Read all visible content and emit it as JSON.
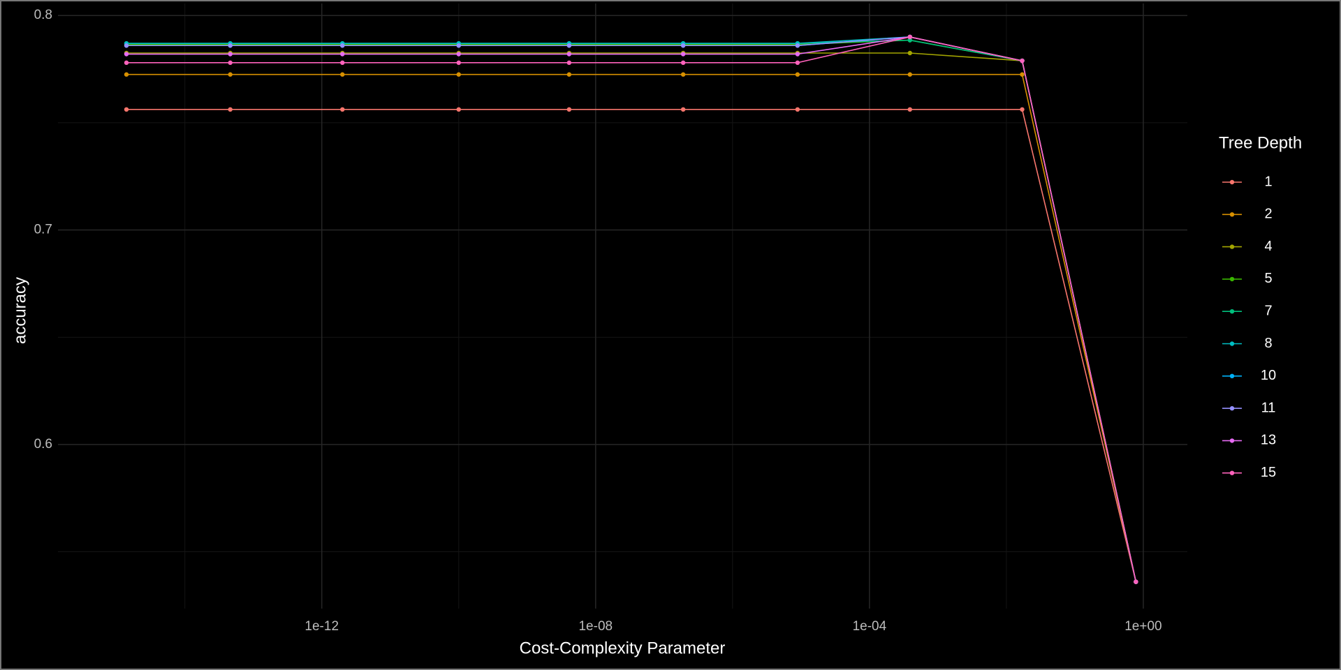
{
  "chart_data": {
    "type": "line",
    "x_label": "Cost-Complexity Parameter",
    "y_label": "accuracy",
    "legend_title": "Tree Depth",
    "legend_position": "right",
    "x_log": true,
    "grid": true,
    "xlim": [
      1.4e-16,
      4.4
    ],
    "ylim": [
      0.5235,
      0.8056
    ],
    "xticks": [
      {
        "value": 1e-12,
        "label": "1e-12"
      },
      {
        "value": 1e-08,
        "label": "1e-08"
      },
      {
        "value": 0.0001,
        "label": "1e-04"
      },
      {
        "value": 1,
        "label": "1e+00"
      }
    ],
    "x_minor_ticks": [
      1e-14,
      1e-10,
      1e-06,
      0.01
    ],
    "yticks": [
      0.6,
      0.7,
      0.8
    ],
    "y_minor_ticks": [
      0.55,
      0.65,
      0.75
    ],
    "x": [
      1.4e-15,
      4.6e-14,
      2e-12,
      1e-10,
      4.1e-09,
      1.9e-07,
      8.9e-06,
      0.00039,
      0.017,
      0.78
    ],
    "series": [
      {
        "name": "1",
        "color": "#F8766D",
        "values": [
          0.7562,
          0.7562,
          0.7562,
          0.7562,
          0.7562,
          0.7562,
          0.7562,
          0.7562,
          0.7562,
          0.536
        ]
      },
      {
        "name": "2",
        "color": "#D89000",
        "values": [
          0.7725,
          0.7725,
          0.7725,
          0.7725,
          0.7725,
          0.7725,
          0.7725,
          0.7725,
          0.7725,
          0.536
        ]
      },
      {
        "name": "4",
        "color": "#A3A500",
        "values": [
          0.7825,
          0.7825,
          0.7825,
          0.7825,
          0.7825,
          0.7825,
          0.7825,
          0.7825,
          0.7789,
          0.536
        ]
      },
      {
        "name": "5",
        "color": "#39B600",
        "values": [
          0.7865,
          0.7865,
          0.7865,
          0.7865,
          0.7865,
          0.7865,
          0.7865,
          0.7885,
          0.7789,
          0.536
        ]
      },
      {
        "name": "7",
        "color": "#00BF7D",
        "values": [
          0.787,
          0.787,
          0.787,
          0.787,
          0.787,
          0.787,
          0.787,
          0.7885,
          0.7789,
          0.536
        ]
      },
      {
        "name": "8",
        "color": "#00BFC4",
        "values": [
          0.787,
          0.787,
          0.787,
          0.787,
          0.787,
          0.787,
          0.787,
          0.79,
          0.7789,
          0.536
        ]
      },
      {
        "name": "10",
        "color": "#00B0F6",
        "values": [
          0.786,
          0.786,
          0.786,
          0.786,
          0.786,
          0.786,
          0.786,
          0.79,
          0.7789,
          0.536
        ]
      },
      {
        "name": "11",
        "color": "#9590FF",
        "values": [
          0.786,
          0.786,
          0.786,
          0.786,
          0.786,
          0.786,
          0.786,
          0.79,
          0.7789,
          0.536
        ]
      },
      {
        "name": "13",
        "color": "#E76BF3",
        "values": [
          0.782,
          0.782,
          0.782,
          0.782,
          0.782,
          0.782,
          0.782,
          0.79,
          0.7789,
          0.536
        ]
      },
      {
        "name": "15",
        "color": "#FF62BC",
        "values": [
          0.778,
          0.778,
          0.778,
          0.778,
          0.778,
          0.778,
          0.778,
          0.79,
          0.7789,
          0.536
        ]
      }
    ]
  }
}
